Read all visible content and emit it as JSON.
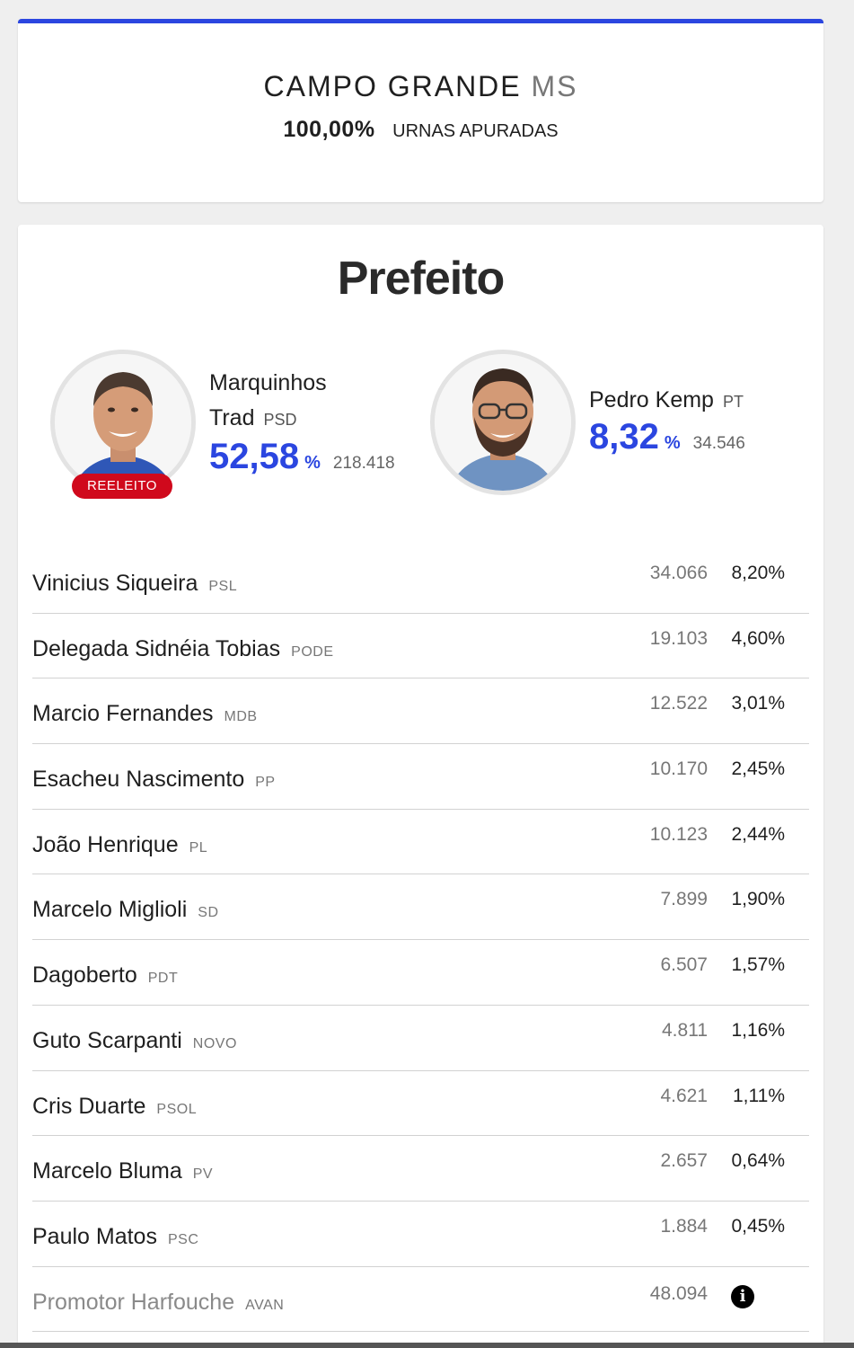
{
  "header": {
    "city": "CAMPO GRANDE",
    "state": "MS",
    "counted_pct": "100,00%",
    "counted_label": "URNAS APURADAS"
  },
  "office": "Prefeito",
  "leaders": [
    {
      "name_line1": "Marquinhos",
      "name_line2": "Trad",
      "party": "PSD",
      "pct": "52,58",
      "pct_symbol": "%",
      "votes": "218.418",
      "badge": "REELEITO"
    },
    {
      "name": "Pedro Kemp",
      "party": "PT",
      "pct": "8,32",
      "pct_symbol": "%",
      "votes": "34.546"
    }
  ],
  "candidates": [
    {
      "name": "Vinicius Siqueira",
      "party": "PSL",
      "votes": "34.066",
      "pct": "8,20%"
    },
    {
      "name": "Delegada Sidnéia Tobias",
      "party": "PODE",
      "votes": "19.103",
      "pct": "4,60%"
    },
    {
      "name": "Marcio Fernandes",
      "party": "MDB",
      "votes": "12.522",
      "pct": "3,01%"
    },
    {
      "name": "Esacheu Nascimento",
      "party": "PP",
      "votes": "10.170",
      "pct": "2,45%"
    },
    {
      "name": "João Henrique",
      "party": "PL",
      "votes": "10.123",
      "pct": "2,44%"
    },
    {
      "name": "Marcelo Miglioli",
      "party": "SD",
      "votes": "7.899",
      "pct": "1,90%"
    },
    {
      "name": "Dagoberto",
      "party": "PDT",
      "votes": "6.507",
      "pct": "1,57%"
    },
    {
      "name": "Guto Scarpanti",
      "party": "NOVO",
      "votes": "4.811",
      "pct": "1,16%"
    },
    {
      "name": "Cris Duarte",
      "party": "PSOL",
      "votes": "4.621",
      "pct": "1,11%"
    },
    {
      "name": "Marcelo Bluma",
      "party": "PV",
      "votes": "2.657",
      "pct": "0,64%"
    },
    {
      "name": "Paulo Matos",
      "party": "PSC",
      "votes": "1.884",
      "pct": "0,45%"
    }
  ],
  "muted_candidate": {
    "name": "Promotor Harfouche",
    "party": "AVAN",
    "votes": "48.094",
    "icon": "info-icon"
  },
  "colors": {
    "accent": "#2b46e0",
    "badge": "#d0091c"
  }
}
